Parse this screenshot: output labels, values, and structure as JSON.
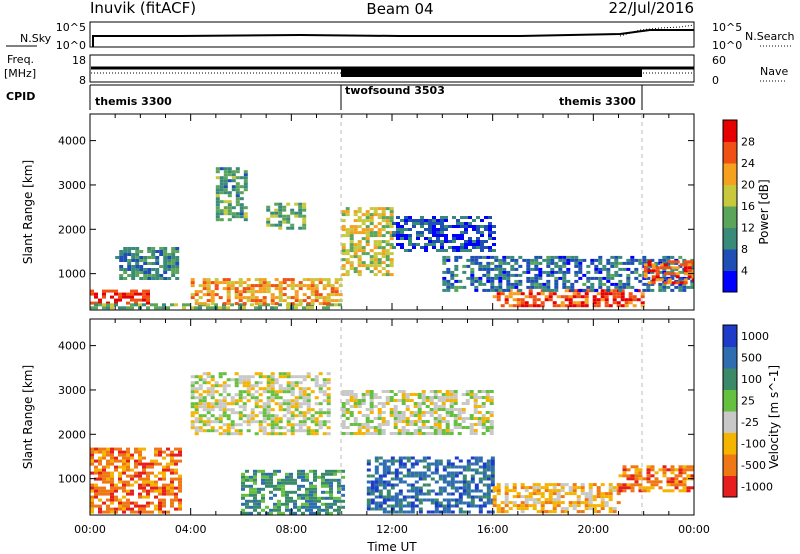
{
  "header": {
    "station": "Inuvik (fitACF)",
    "beam": "Beam 04",
    "date": "22/Jul/2016"
  },
  "top_panel": {
    "nsky_label": "N.Sky",
    "nsky_ticks": [
      "10^5",
      "10^0"
    ],
    "nsearch_label": "N.Search",
    "nsearch_ticks": [
      "10^5",
      "10^0"
    ],
    "freq_label_line1": "Freq.",
    "freq_label_line2": "[MHz]",
    "freq_ticks": [
      "18",
      "8"
    ],
    "nave_label": "Nave",
    "nave_ticks": [
      "60",
      "0"
    ],
    "cpid_label": "CPID",
    "cpid_segments": [
      {
        "name": "themis 3300",
        "start_hour": 0,
        "end_hour": 10
      },
      {
        "name": "twofsound 3503",
        "start_hour": 10,
        "end_hour": 22
      },
      {
        "name": "themis 3300",
        "start_hour": 22,
        "end_hour": 24
      }
    ]
  },
  "chart_data": [
    {
      "type": "heatmap",
      "parameter": "Power",
      "ylabel": "Slant Range [km]",
      "yticks": [
        1000,
        2000,
        3000,
        4000
      ],
      "ylim": [
        180,
        4600
      ],
      "xlim_hours": [
        0,
        24
      ],
      "colorbar": {
        "label": "Power [dB]",
        "ticks": [
          "28",
          "24",
          "20",
          "16",
          "12",
          "8",
          "4"
        ],
        "range": [
          0,
          32
        ],
        "colors": [
          "#0000ff",
          "#1e4fb4",
          "#3a8a7a",
          "#5aa55a",
          "#c8c83c",
          "#f5a01e",
          "#f05014",
          "#e60000"
        ]
      },
      "features": [
        {
          "t0": 0.0,
          "t1": 2.3,
          "r0": 330,
          "r1": 640,
          "value": 29
        },
        {
          "t0": 0.0,
          "t1": 10.0,
          "r0": 250,
          "r1": 330,
          "value": 14
        },
        {
          "t0": 4.0,
          "t1": 10.0,
          "r0": 330,
          "r1": 900,
          "value": 22
        },
        {
          "t0": 1.0,
          "t1": 3.5,
          "r0": 900,
          "r1": 1600,
          "value": 10
        },
        {
          "t0": 5.0,
          "t1": 6.2,
          "r0": 2200,
          "r1": 3400,
          "value": 12
        },
        {
          "t0": 7.0,
          "t1": 8.5,
          "r0": 2000,
          "r1": 2600,
          "value": 14
        },
        {
          "t0": 10.0,
          "t1": 12.0,
          "r0": 1000,
          "r1": 2500,
          "value": 18
        },
        {
          "t0": 12.0,
          "t1": 16.0,
          "r0": 1500,
          "r1": 2300,
          "value": 6
        },
        {
          "t0": 16.0,
          "t1": 22.0,
          "r0": 250,
          "r1": 650,
          "value": 27
        },
        {
          "t0": 14.0,
          "t1": 24.0,
          "r0": 650,
          "r1": 1400,
          "value": 8
        },
        {
          "t0": 22.0,
          "t1": 24.0,
          "r0": 800,
          "r1": 1300,
          "value": 26
        }
      ]
    },
    {
      "type": "heatmap",
      "parameter": "Velocity",
      "ylabel": "Slant Range [km]",
      "xlabel": "Time UT",
      "xticks": [
        "00:00",
        "04:00",
        "08:00",
        "12:00",
        "16:00",
        "20:00",
        "00:00"
      ],
      "yticks": [
        1000,
        2000,
        3000,
        4000
      ],
      "ylim": [
        180,
        4600
      ],
      "xlim_hours": [
        0,
        24
      ],
      "colorbar": {
        "label": "Velocity [m s^-1]",
        "ticks": [
          "1000",
          "500",
          "100",
          "25",
          "-25",
          "-100",
          "-500",
          "-1000"
        ],
        "colors": [
          "#1e3cc8",
          "#2e6eb0",
          "#3a8a6a",
          "#66c040",
          "#c8c8c8",
          "#f5b400",
          "#f07814",
          "#e61e1e"
        ]
      },
      "features": [
        {
          "t0": 0.0,
          "t1": 3.5,
          "r0": 250,
          "r1": 1700,
          "category": "-500"
        },
        {
          "t0": 4.0,
          "t1": 9.5,
          "r0": 2000,
          "r1": 3400,
          "category": "0"
        },
        {
          "t0": 6.0,
          "t1": 10.0,
          "r0": 250,
          "r1": 1200,
          "category": "100"
        },
        {
          "t0": 10.0,
          "t1": 16.0,
          "r0": 2000,
          "r1": 3000,
          "category": "0"
        },
        {
          "t0": 11.0,
          "t1": 16.0,
          "r0": 250,
          "r1": 1500,
          "category": "500"
        },
        {
          "t0": 16.0,
          "t1": 21.0,
          "r0": 250,
          "r1": 900,
          "category": "-100"
        },
        {
          "t0": 21.0,
          "t1": 24.0,
          "r0": 700,
          "r1": 1300,
          "category": "-500"
        }
      ]
    }
  ]
}
